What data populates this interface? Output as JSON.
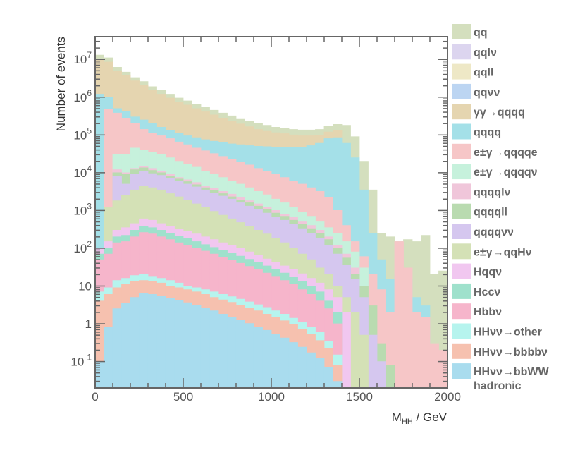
{
  "chart_data": {
    "type": "area",
    "stacked": true,
    "step": true,
    "xlabel": "M_HH / GeV",
    "xlabel_main": "M",
    "xlabel_sub": "HH",
    "xlabel_unit": " / GeV",
    "ylabel": "Number of events",
    "xlim": [
      0,
      2000
    ],
    "ylim": [
      0.02,
      40000000
    ],
    "yscale": "log",
    "grid": false,
    "legend_position": "right",
    "x_ticks": [
      "0",
      "500",
      "1000",
      "1500",
      "2000"
    ],
    "y_ticks": [
      {
        "value": 0.1,
        "mantissa": "10",
        "exp": "-1"
      },
      {
        "value": 1,
        "mantissa": "1",
        "exp": ""
      },
      {
        "value": 10,
        "mantissa": "10",
        "exp": ""
      },
      {
        "value": 100,
        "mantissa": "10",
        "exp": "2"
      },
      {
        "value": 1000,
        "mantissa": "10",
        "exp": "3"
      },
      {
        "value": 10000,
        "mantissa": "10",
        "exp": "4"
      },
      {
        "value": 100000,
        "mantissa": "10",
        "exp": "5"
      },
      {
        "value": 1000000,
        "mantissa": "10",
        "exp": "6"
      },
      {
        "value": 10000000,
        "mantissa": "10",
        "exp": "7"
      }
    ],
    "x_edges": [
      0,
      50,
      100,
      150,
      200,
      250,
      300,
      350,
      400,
      450,
      500,
      550,
      600,
      650,
      700,
      750,
      800,
      850,
      900,
      950,
      1000,
      1050,
      1100,
      1150,
      1200,
      1250,
      1300,
      1350,
      1400,
      1450,
      1500,
      1550,
      1600,
      1650,
      1700,
      1750,
      1800,
      1850,
      1900,
      1950,
      2000
    ],
    "series": [
      {
        "name": "qq",
        "color": "#d4dfbe",
        "values": [
          13000000,
          11000000,
          6200000,
          4600000,
          3300000,
          2600000,
          1900000,
          1500000,
          1200000,
          950000,
          800000,
          650000,
          540000,
          450000,
          380000,
          320000,
          270000,
          230000,
          200000,
          180000,
          160000,
          150000,
          140000,
          135000,
          135000,
          140000,
          170000,
          190000,
          180000,
          90000,
          20000,
          3500,
          250,
          200,
          150,
          170,
          150,
          220,
          20,
          25
        ]
      },
      {
        "name": "qqlν",
        "color": "#dcd5ef",
        "values": [
          0
        ]
      },
      {
        "name": "qqll",
        "color": "#eee8c6",
        "values": [
          0
        ]
      },
      {
        "name": "qqνν",
        "color": "#bcd5f2",
        "values": [
          0
        ]
      },
      {
        "name": "γγ→qqqq",
        "color": "#e5d5b0",
        "values": [
          10000000,
          8500000,
          5000000,
          3800000,
          2700000,
          2100000,
          1550000,
          1200000,
          950000,
          750000,
          620000,
          500000,
          410000,
          340000,
          280000,
          235000,
          195000,
          165000,
          140000,
          125000,
          115000,
          108000,
          100000,
          95000,
          95000,
          98000,
          120000,
          130000,
          0,
          0,
          0,
          0,
          0,
          0,
          0,
          0,
          0,
          0,
          0,
          0
        ]
      },
      {
        "name": "qqqq",
        "color": "#a4e0e8",
        "values": [
          1200000,
          1000000,
          500000,
          420000,
          300000,
          250000,
          200000,
          160000,
          130000,
          110000,
          95000,
          85000,
          75000,
          68000,
          62000,
          58000,
          55000,
          52000,
          50000,
          49000,
          48000,
          47000,
          47000,
          48000,
          52000,
          60000,
          80000,
          85000,
          60000,
          25000,
          3500,
          250,
          50,
          15,
          20,
          15,
          5,
          3,
          0,
          0
        ]
      },
      {
        "name": "e±γ→qqqqe",
        "color": "#f6c6c7",
        "values": [
          0,
          480000,
          380000,
          280000,
          200000,
          140000,
          110000,
          95000,
          80000,
          65000,
          55000,
          45000,
          38000,
          32000,
          27000,
          23000,
          19000,
          16000,
          13000,
          11000,
          9000,
          7500,
          6000,
          5000,
          4000,
          3200,
          2200,
          1000,
          400,
          150,
          60,
          20,
          8,
          2,
          150,
          30,
          2,
          1.5,
          0.3,
          0.2
        ]
      },
      {
        "name": "e±γ→qqqqν",
        "color": "#c6f1dc",
        "values": [
          0,
          0,
          30000,
          30000,
          45000,
          40000,
          35000,
          30000,
          25000,
          20000,
          17000,
          14000,
          11000,
          9000,
          7500,
          6000,
          5000,
          4000,
          3200,
          2600,
          2000,
          1600,
          1200,
          900,
          700,
          500,
          350,
          250,
          150,
          80,
          30,
          0,
          0,
          0,
          0,
          0,
          0,
          0,
          0,
          0
        ]
      },
      {
        "name": "qqqqlν",
        "color": "#f0c6da",
        "values": [
          0,
          0,
          12000,
          10000,
          13000,
          15000,
          13000,
          11000,
          9000,
          7500,
          6500,
          5500,
          4500,
          3800,
          3200,
          2700,
          2200,
          1800,
          1500,
          1200,
          1000,
          800,
          650,
          500,
          400,
          300,
          200,
          120,
          70,
          30,
          0,
          0,
          0,
          0,
          0,
          0,
          0,
          0,
          0,
          0
        ]
      },
      {
        "name": "qqqqll",
        "color": "#b9dbb0",
        "values": [
          0,
          0,
          10000,
          9000,
          12000,
          13500,
          11500,
          10000,
          8000,
          6800,
          5800,
          4800,
          4000,
          3400,
          2800,
          2300,
          1900,
          1600,
          1300,
          1050,
          850,
          700,
          550,
          430,
          330,
          250,
          170,
          100,
          55,
          20,
          10,
          3,
          0.3,
          0.08,
          0,
          0,
          0,
          0,
          0,
          0
        ]
      },
      {
        "name": "qqqqνν",
        "color": "#d5c7ef",
        "values": [
          0,
          0,
          8000,
          5000,
          9000,
          11000,
          9500,
          8500,
          7000,
          6000,
          5000,
          4200,
          3500,
          2900,
          2400,
          2000,
          1600,
          1300,
          1050,
          850,
          680,
          550,
          430,
          330,
          250,
          180,
          120,
          70,
          35,
          15,
          5,
          0.5,
          0.1,
          0,
          0,
          0,
          0,
          0,
          0,
          0
        ]
      },
      {
        "name": "e±γ→qqHν",
        "color": "#d4e1b6",
        "values": [
          0,
          1200,
          1800,
          2500,
          3500,
          4500,
          4000,
          3500,
          2800,
          2300,
          1900,
          1500,
          1200,
          950,
          750,
          600,
          480,
          380,
          300,
          240,
          180,
          140,
          100,
          70,
          50,
          30,
          20,
          10,
          5,
          2,
          0.5,
          0,
          0,
          0,
          0,
          0,
          0,
          0,
          0,
          0
        ]
      },
      {
        "name": "Hqqν",
        "color": "#f1c7f0",
        "values": [
          100,
          150,
          300,
          350,
          450,
          600,
          550,
          450,
          380,
          320,
          280,
          240,
          200,
          170,
          140,
          120,
          100,
          80,
          65,
          52,
          42,
          34,
          27,
          21,
          16,
          12,
          8,
          5,
          2,
          0,
          0,
          0,
          0,
          0,
          0,
          0,
          0,
          0,
          0,
          0
        ]
      },
      {
        "name": "Hccν",
        "color": "#9fe1cc",
        "values": [
          70,
          100,
          200,
          220,
          300,
          380,
          350,
          300,
          250,
          210,
          180,
          150,
          125,
          105,
          88,
          74,
          62,
          51,
          42,
          34,
          28,
          22,
          17,
          13,
          10,
          7,
          4,
          2,
          0,
          0,
          0,
          0,
          0,
          0,
          0,
          0,
          0,
          0,
          0,
          0
        ]
      },
      {
        "name": "Hbbν",
        "color": "#f6b5cb",
        "values": [
          50,
          70,
          140,
          150,
          200,
          260,
          240,
          200,
          170,
          140,
          120,
          100,
          84,
          70,
          58,
          48,
          40,
          33,
          27,
          22,
          18,
          14,
          11,
          8,
          6,
          4,
          2.5,
          1,
          0,
          0,
          0,
          0,
          0,
          0,
          0,
          0,
          0,
          0,
          0,
          0
        ]
      },
      {
        "name": "HHνν→other",
        "color": "#b6f4ee",
        "values": [
          7,
          9,
          14,
          16,
          19,
          20,
          18,
          16,
          14,
          12,
          10,
          9,
          8,
          7,
          6,
          5.2,
          4.5,
          3.8,
          3.2,
          2.7,
          2.2,
          1.8,
          1.4,
          1.1,
          0.8,
          0.6,
          0.35,
          0.15,
          0,
          0,
          0,
          0,
          0,
          0,
          0,
          0,
          0,
          0,
          0,
          0
        ]
      },
      {
        "name": "HHνν→bbbbν",
        "color": "#f6c1af",
        "values": [
          4,
          6,
          9,
          11,
          13,
          14,
          13,
          12,
          10,
          9,
          8,
          7,
          6,
          5,
          4.3,
          3.7,
          3.1,
          2.6,
          2.2,
          1.8,
          1.5,
          1.2,
          0.95,
          0.72,
          0.52,
          0.36,
          0.22,
          0.08,
          0,
          0,
          0,
          0,
          0,
          0,
          0,
          0,
          0,
          0,
          0,
          0
        ]
      },
      {
        "name": "HHνν→bbWW hadronic",
        "color": "#a9dcee",
        "values": [
          0.1,
          0.8,
          2.5,
          3.5,
          5,
          6.5,
          6,
          5.5,
          4.8,
          4.2,
          3.6,
          3.1,
          2.6,
          2.2,
          1.8,
          1.5,
          1.25,
          1.02,
          0.83,
          0.67,
          0.53,
          0.42,
          0.32,
          0.24,
          0.17,
          0.12,
          0.07,
          0.03,
          0,
          0,
          0,
          0,
          0,
          0,
          0,
          0,
          0,
          0,
          0,
          0
        ]
      }
    ],
    "legend_lines": [
      [
        "qq"
      ],
      [
        "qqlν"
      ],
      [
        "qqll"
      ],
      [
        "qqνν"
      ],
      [
        "γγ→qqqq"
      ],
      [
        "qqqq"
      ],
      [
        "e±γ→qqqqe"
      ],
      [
        "e±γ→qqqqν"
      ],
      [
        "qqqqlν"
      ],
      [
        "qqqqll"
      ],
      [
        "qqqqνν"
      ],
      [
        "e±γ→qqHν"
      ],
      [
        "Hqqν"
      ],
      [
        "Hccν"
      ],
      [
        "Hbbν"
      ],
      [
        "HHνν→other"
      ],
      [
        "HHνν→bbbbν"
      ],
      [
        "HHνν→bbWW",
        "hadronic"
      ]
    ]
  }
}
